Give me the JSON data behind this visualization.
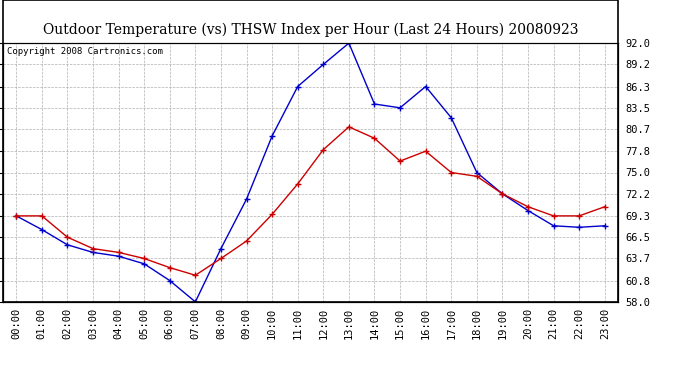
{
  "title": "Outdoor Temperature (vs) THSW Index per Hour (Last 24 Hours) 20080923",
  "copyright": "Copyright 2008 Cartronics.com",
  "hours": [
    "00:00",
    "01:00",
    "02:00",
    "03:00",
    "04:00",
    "05:00",
    "06:00",
    "07:00",
    "08:00",
    "09:00",
    "10:00",
    "11:00",
    "12:00",
    "13:00",
    "14:00",
    "15:00",
    "16:00",
    "17:00",
    "18:00",
    "19:00",
    "20:00",
    "21:00",
    "22:00",
    "23:00"
  ],
  "outdoor_temp": [
    69.3,
    69.3,
    66.5,
    65.0,
    64.5,
    63.7,
    62.5,
    61.5,
    63.7,
    66.0,
    69.5,
    73.5,
    78.0,
    81.0,
    79.5,
    76.5,
    77.8,
    75.0,
    74.5,
    72.2,
    70.5,
    69.3,
    69.3,
    70.5
  ],
  "thsw_index": [
    69.3,
    67.5,
    65.5,
    64.5,
    64.0,
    63.0,
    60.8,
    58.0,
    65.0,
    71.5,
    79.8,
    86.3,
    89.2,
    92.0,
    84.0,
    83.5,
    86.3,
    82.2,
    75.0,
    72.2,
    70.0,
    68.0,
    67.8,
    68.0
  ],
  "ylim": [
    58.0,
    92.0
  ],
  "yticks": [
    58.0,
    60.8,
    63.7,
    66.5,
    69.3,
    72.2,
    75.0,
    77.8,
    80.7,
    83.5,
    86.3,
    89.2,
    92.0
  ],
  "ytick_labels": [
    "58.0",
    "60.8",
    "63.7",
    "66.5",
    "69.3",
    "72.2",
    "75.0",
    "77.8",
    "80.7",
    "83.5",
    "86.3",
    "89.2",
    "92.0"
  ],
  "temp_color": "#cc0000",
  "thsw_color": "#0000cc",
  "bg_color": "#ffffff",
  "grid_color": "#b0b0b0",
  "title_fontsize": 10,
  "copyright_fontsize": 6.5,
  "tick_fontsize": 7.5
}
